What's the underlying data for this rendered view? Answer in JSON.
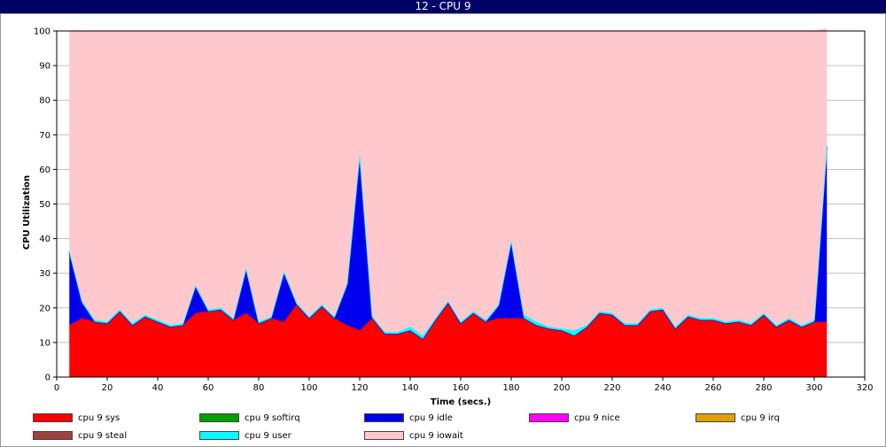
{
  "window": {
    "title": "12 - CPU 9"
  },
  "chart_data": {
    "type": "area",
    "stacked": true,
    "title": "",
    "xlabel": "Time (secs.)",
    "ylabel": "CPU Utilization",
    "xlim": [
      0,
      320
    ],
    "ylim": [
      0,
      100
    ],
    "xticks": [
      0,
      20,
      40,
      60,
      80,
      100,
      120,
      140,
      160,
      180,
      200,
      220,
      240,
      260,
      280,
      300,
      320
    ],
    "yticks": [
      0,
      10,
      20,
      30,
      40,
      50,
      60,
      70,
      80,
      90,
      100
    ],
    "grid": true,
    "legend_position": "bottom",
    "x": [
      5,
      10,
      15,
      20,
      25,
      30,
      35,
      40,
      45,
      50,
      55,
      60,
      65,
      70,
      75,
      80,
      85,
      90,
      95,
      100,
      105,
      110,
      115,
      120,
      125,
      130,
      135,
      140,
      145,
      150,
      155,
      160,
      165,
      170,
      175,
      180,
      185,
      190,
      195,
      200,
      205,
      210,
      215,
      220,
      225,
      230,
      235,
      240,
      245,
      250,
      255,
      260,
      265,
      270,
      275,
      280,
      285,
      290,
      295,
      300,
      305
    ],
    "series": [
      {
        "name": "cpu 9 sys",
        "color": "#ff0000",
        "values": [
          15,
          17,
          16,
          15.5,
          19,
          15,
          17.5,
          16,
          14.5,
          15,
          18.5,
          19,
          19.5,
          16.5,
          18.5,
          15.5,
          17,
          16,
          21,
          17,
          20.5,
          17,
          15,
          13.5,
          17,
          12.5,
          12.5,
          13.5,
          11,
          16.5,
          21.5,
          15.5,
          18.5,
          16,
          17,
          17,
          17,
          15,
          14,
          13.5,
          12,
          14.5,
          18.5,
          18,
          15,
          15,
          19,
          19.5,
          14,
          17.5,
          16.5,
          16.5,
          15.5,
          16,
          15,
          18,
          14.5,
          16.5,
          14.5,
          16,
          16
        ]
      },
      {
        "name": "cpu 9 softirq",
        "color": "#00a000",
        "values": [
          0,
          0,
          0,
          0,
          0,
          0,
          0,
          0,
          0,
          0,
          0,
          0,
          0,
          0,
          0,
          0,
          0,
          0,
          0,
          0,
          0,
          0,
          0,
          0,
          0,
          0,
          0,
          0,
          0,
          0,
          0,
          0,
          0,
          0,
          0,
          0,
          0,
          0,
          0,
          0,
          0,
          0,
          0,
          0,
          0,
          0,
          0,
          0,
          0,
          0,
          0,
          0,
          0,
          0,
          0,
          0,
          0,
          0,
          0,
          0,
          0
        ]
      },
      {
        "name": "cpu 9 idle",
        "color": "#0000ee",
        "values": [
          21,
          4.5,
          0,
          0,
          0,
          0,
          0,
          0,
          0,
          0,
          7.5,
          0,
          0,
          0,
          12.5,
          0,
          0,
          14,
          0,
          0,
          0,
          0,
          11.5,
          50.5,
          0,
          0,
          0,
          0,
          0,
          0,
          0,
          0,
          0,
          0,
          3.5,
          22,
          0,
          0,
          0,
          0,
          0,
          0,
          0,
          0,
          0,
          0,
          0,
          0,
          0,
          0,
          0,
          0,
          0,
          0,
          0,
          0,
          0,
          0,
          0,
          0,
          50.5
        ]
      },
      {
        "name": "cpu 9 nice",
        "color": "#ff00ff",
        "values": [
          0,
          0,
          0,
          0,
          0,
          0,
          0,
          0,
          0,
          0,
          0,
          0,
          0,
          0,
          0,
          0,
          0,
          0,
          0,
          0,
          0,
          0,
          0,
          0,
          0,
          0,
          0,
          0,
          0,
          0,
          0,
          0,
          0,
          0,
          0,
          0,
          0,
          0,
          0,
          0,
          0,
          0,
          0,
          0,
          0,
          0,
          0,
          0,
          0,
          0,
          0,
          0,
          0,
          0,
          0,
          0,
          0,
          0,
          0,
          0,
          0
        ]
      },
      {
        "name": "cpu 9 irq",
        "color": "#e0a000",
        "values": [
          0,
          0,
          0,
          0,
          0,
          0,
          0,
          0,
          0,
          0,
          0,
          0,
          0,
          0,
          0,
          0,
          0,
          0,
          0,
          0,
          0,
          0,
          0,
          0,
          0,
          0,
          0,
          0,
          0,
          0,
          0,
          0,
          0,
          0,
          0,
          0,
          0,
          0,
          0,
          0,
          0,
          0,
          0,
          0,
          0,
          0,
          0,
          0,
          0,
          0,
          0,
          0,
          0,
          0,
          0,
          0,
          0,
          0,
          0,
          0,
          0
        ]
      },
      {
        "name": "cpu 9 steal",
        "color": "#a04040",
        "values": [
          0,
          0,
          0,
          0,
          0,
          0,
          0,
          0,
          0,
          0,
          0,
          0,
          0,
          0,
          0,
          0,
          0,
          0,
          0,
          0,
          0,
          0,
          0,
          0,
          0,
          0,
          0,
          0,
          0,
          0,
          0,
          0,
          0,
          0,
          0,
          0,
          0,
          0,
          0,
          0,
          0,
          0,
          0,
          0,
          0,
          0,
          0,
          0,
          0,
          0,
          0,
          0,
          0,
          0,
          0,
          0,
          0,
          0,
          0,
          0,
          0
        ]
      },
      {
        "name": "cpu 9 user",
        "color": "#00ffff",
        "values": [
          0.5,
          0.5,
          0.5,
          0.5,
          0.5,
          0.5,
          0.5,
          0.5,
          0.5,
          0.5,
          0.5,
          0.5,
          0.5,
          0.5,
          0.5,
          0.5,
          0.5,
          0.5,
          0.5,
          0.5,
          0.5,
          0.5,
          0.5,
          0.5,
          0.5,
          0.5,
          0.5,
          1,
          1,
          0.5,
          0.5,
          0.5,
          0.5,
          0.5,
          0.5,
          0.5,
          1,
          1,
          0.5,
          0.5,
          1.5,
          0.5,
          0.5,
          0.5,
          0.5,
          0.5,
          0.5,
          0.5,
          0.5,
          0.5,
          0.5,
          0.5,
          0.5,
          0.5,
          0.5,
          0.5,
          0.5,
          0.5,
          0.5,
          0.5,
          0.5
        ]
      },
      {
        "name": "cpu 9 iowait",
        "color": "#ffc8cc",
        "values": [
          63.5,
          78,
          83.5,
          84,
          80.5,
          84.5,
          82,
          83.5,
          85,
          84.5,
          73.5,
          80.5,
          80,
          83,
          68.5,
          84,
          82.5,
          69.5,
          78.5,
          82.5,
          79,
          82.5,
          73,
          35.5,
          82.5,
          87,
          87,
          85.5,
          88,
          83,
          78,
          84,
          81,
          83.5,
          79,
          60.5,
          82,
          84,
          85.5,
          86,
          86.5,
          85,
          81,
          81.5,
          84.5,
          84.5,
          80.5,
          80,
          85.5,
          82,
          83,
          83,
          84,
          83.5,
          84.5,
          81.5,
          85,
          83,
          85,
          83.5,
          33.5
        ]
      }
    ]
  }
}
